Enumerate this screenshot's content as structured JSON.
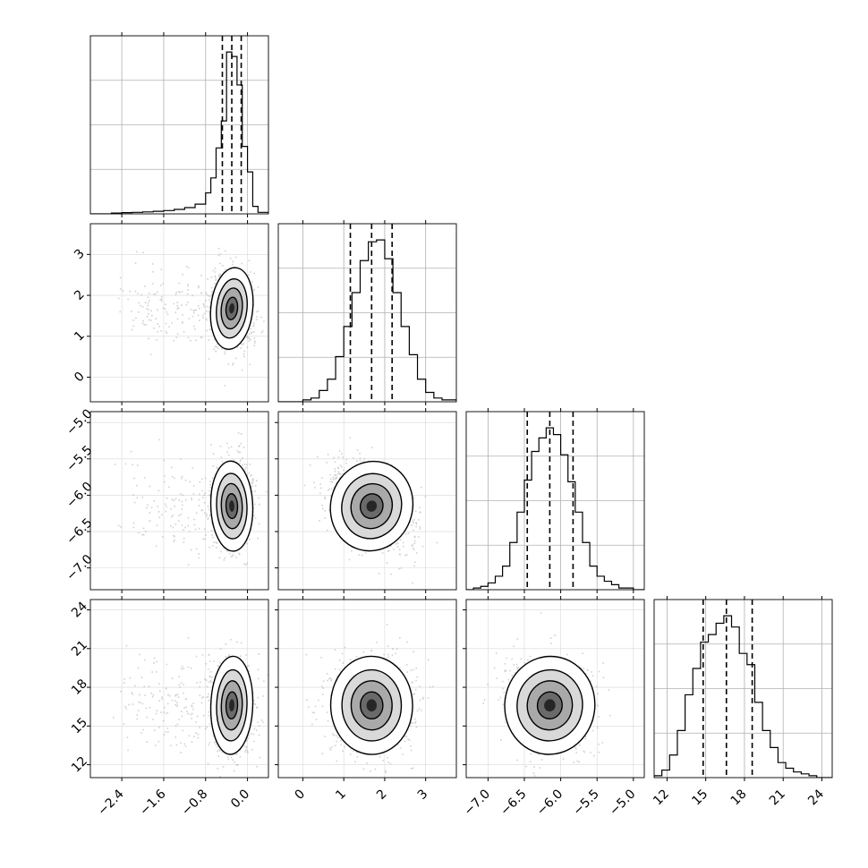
{
  "chart_data": {
    "type": "corner",
    "grid": true,
    "parameters": [
      {
        "range": [
          -3.0,
          0.4
        ],
        "ticks": [
          -2.4,
          -1.6,
          -0.8,
          0.0
        ],
        "tick_labels": [
          "−2.4",
          "−1.6",
          "−0.8",
          "0.0"
        ],
        "quantiles": [
          -0.48,
          -0.3,
          -0.12
        ],
        "mode": -0.3,
        "sd": [
          0.2,
          0.2
        ]
      },
      {
        "range": [
          -0.6,
          3.75
        ],
        "ticks": [
          0,
          1,
          2,
          3
        ],
        "tick_labels": [
          "0",
          "1",
          "2",
          "3"
        ],
        "quantiles": [
          1.16,
          1.68,
          2.18
        ],
        "mode": 1.68,
        "sd": [
          0.5,
          0.5
        ]
      },
      {
        "range": [
          -7.3,
          -4.85
        ],
        "ticks": [
          -7.0,
          -6.5,
          -6.0,
          -5.5,
          -5.0
        ],
        "tick_labels": [
          "−7.0",
          "−6.5",
          "−6.0",
          "−5.5",
          "−5.0"
        ],
        "quantiles": [
          -6.46,
          -6.15,
          -5.83
        ],
        "mode": -6.15,
        "sd": [
          0.31,
          0.31
        ]
      },
      {
        "range": [
          11.0,
          24.8
        ],
        "ticks": [
          12,
          15,
          18,
          21,
          24
        ],
        "tick_labels": [
          "12",
          "15",
          "18",
          "21",
          "24"
        ],
        "quantiles": [
          14.8,
          16.6,
          18.6
        ],
        "mode": 16.6,
        "sd": [
          1.8,
          1.9
        ]
      }
    ],
    "histograms": [
      {
        "bins": [
          -3.0,
          -2.8,
          -2.6,
          -2.4,
          -2.2,
          -2.0,
          -1.8,
          -1.6,
          -1.4,
          -1.2,
          -1.0,
          -0.8,
          -0.7,
          -0.6,
          -0.5,
          -0.4,
          -0.3,
          -0.2,
          -0.1,
          0.0,
          0.1,
          0.2,
          0.4
        ],
        "counts": [
          0,
          0,
          0.5,
          0.8,
          1.0,
          1.3,
          1.7,
          2.2,
          3.0,
          4.2,
          6.5,
          14,
          24,
          44,
          62,
          108,
          105,
          86,
          45,
          28,
          5,
          1
        ]
      },
      {
        "bins": [
          -0.6,
          -0.4,
          -0.2,
          0.0,
          0.2,
          0.4,
          0.6,
          0.8,
          1.0,
          1.2,
          1.4,
          1.6,
          1.8,
          2.0,
          2.2,
          2.4,
          2.6,
          2.8,
          3.0,
          3.2,
          3.4,
          3.75
        ],
        "counts": [
          0,
          0,
          0,
          1,
          2,
          6,
          12,
          24,
          40,
          58,
          75,
          85,
          86,
          76,
          58,
          40,
          25,
          12,
          5,
          2,
          1
        ]
      },
      {
        "bins": [
          -7.3,
          -7.2,
          -7.1,
          -7.0,
          -6.9,
          -6.8,
          -6.7,
          -6.6,
          -6.5,
          -6.4,
          -6.3,
          -6.2,
          -6.1,
          -6.0,
          -5.9,
          -5.8,
          -5.7,
          -5.6,
          -5.5,
          -5.4,
          -5.3,
          -5.2,
          -5.1,
          -5.0,
          -4.85
        ],
        "counts": [
          0,
          1,
          2,
          4,
          8,
          14,
          28,
          46,
          65,
          82,
          90,
          96,
          92,
          80,
          64,
          46,
          28,
          14,
          8,
          5,
          3,
          1,
          1,
          0
        ]
      },
      {
        "bins": [
          11.0,
          11.6,
          12.2,
          12.8,
          13.4,
          14.0,
          14.6,
          15.2,
          15.8,
          16.4,
          17.0,
          17.6,
          18.2,
          18.8,
          19.4,
          20.0,
          20.6,
          21.2,
          21.8,
          22.4,
          23.0,
          23.6,
          24.2,
          24.8
        ],
        "counts": [
          1,
          4,
          12,
          25,
          44,
          58,
          72,
          76,
          82,
          86,
          80,
          66,
          60,
          40,
          25,
          16,
          8,
          5,
          3,
          2,
          1,
          0,
          0
        ]
      }
    ]
  }
}
